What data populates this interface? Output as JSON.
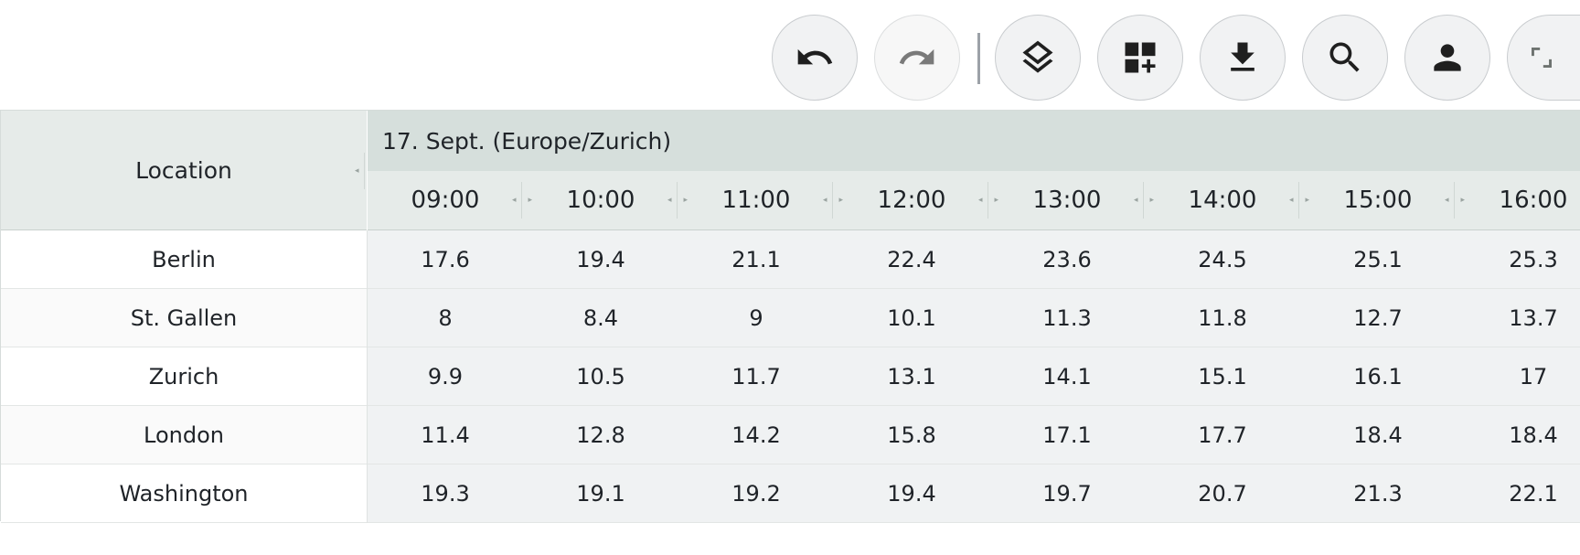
{
  "toolbar": {
    "buttons": [
      {
        "name": "undo-button",
        "icon": "undo-icon"
      },
      {
        "name": "redo-button",
        "icon": "redo-icon"
      },
      {
        "name": "layers-button",
        "icon": "layers-icon"
      },
      {
        "name": "add-widget-button",
        "icon": "add-grid-icon"
      },
      {
        "name": "download-button",
        "icon": "download-icon"
      },
      {
        "name": "search-button",
        "icon": "search-icon"
      },
      {
        "name": "user-button",
        "icon": "person-icon"
      },
      {
        "name": "fullscreen-button",
        "icon": "fullscreen-icon"
      }
    ]
  },
  "table": {
    "location_header": "Location",
    "date_header": "17. Sept. (Europe/Zurich)",
    "times": [
      "09:00",
      "10:00",
      "11:00",
      "12:00",
      "13:00",
      "14:00",
      "15:00",
      "16:00"
    ],
    "rows": [
      {
        "location": "Berlin",
        "values": [
          "17.6",
          "19.4",
          "21.1",
          "22.4",
          "23.6",
          "24.5",
          "25.1",
          "25.3"
        ]
      },
      {
        "location": "St. Gallen",
        "values": [
          "8",
          "8.4",
          "9",
          "10.1",
          "11.3",
          "11.8",
          "12.7",
          "13.7"
        ]
      },
      {
        "location": "Zurich",
        "values": [
          "9.9",
          "10.5",
          "11.7",
          "13.1",
          "14.1",
          "15.1",
          "16.1",
          "17"
        ]
      },
      {
        "location": "London",
        "values": [
          "11.4",
          "12.8",
          "14.2",
          "15.8",
          "17.1",
          "17.7",
          "18.4",
          "18.4"
        ]
      },
      {
        "location": "Washington",
        "values": [
          "19.3",
          "19.1",
          "19.2",
          "19.4",
          "19.7",
          "20.7",
          "21.3",
          "22.1"
        ]
      }
    ]
  },
  "colors": {
    "header_bg": "#e6ebe9",
    "date_header_bg": "#d6dfdc",
    "value_bg": "#f0f2f3",
    "icon": "#1f1f1f",
    "icon_disabled": "#7a7a7a"
  }
}
